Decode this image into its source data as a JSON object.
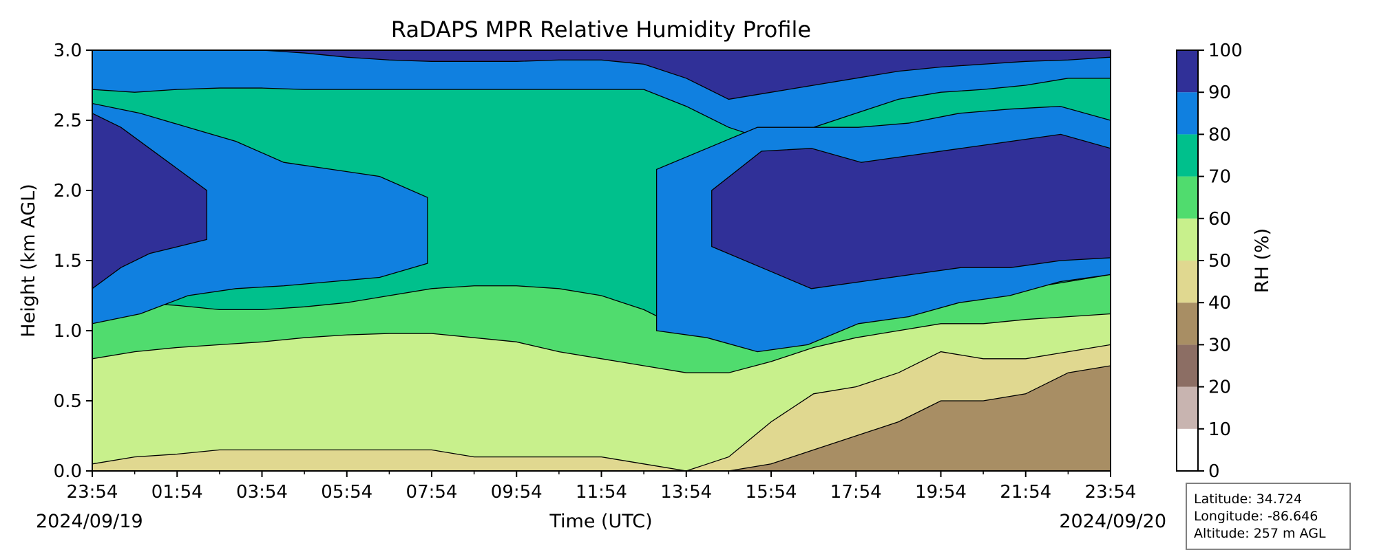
{
  "chart_data": {
    "type": "heatmap",
    "subtype": "filled contour time-height cross-section",
    "title": "RaDAPS MPR Relative Humidity Profile",
    "xlabel": "Time (UTC)",
    "ylabel": "Height (km AGL)",
    "x_ticks": [
      "23:54",
      "01:54",
      "03:54",
      "05:54",
      "07:54",
      "09:54",
      "11:54",
      "13:54",
      "15:54",
      "17:54",
      "19:54",
      "21:54",
      "23:54"
    ],
    "x_date_labels": [
      "2024/09/19",
      "2024/09/20"
    ],
    "y_ticks": [
      "0.0",
      "0.5",
      "1.0",
      "1.5",
      "2.0",
      "2.5",
      "3.0"
    ],
    "ylim": [
      0,
      3.0
    ],
    "xlim_hours": [
      0,
      24
    ],
    "colorbar": {
      "label": "RH (%)",
      "ticks": [
        "0",
        "10",
        "20",
        "30",
        "40",
        "50",
        "60",
        "70",
        "80",
        "90",
        "100"
      ],
      "levels": [
        0,
        10,
        20,
        30,
        40,
        50,
        60,
        70,
        80,
        90,
        100
      ],
      "colors": [
        "#ffffff",
        "#c8b4b0",
        "#8c6e64",
        "#a88e64",
        "#e0d890",
        "#c8f08c",
        "#50dc6e",
        "#00c08c",
        "#1080e0",
        "#303098"
      ]
    },
    "boundaries_km": {
      "time_hours": [
        0,
        1,
        2,
        3,
        4,
        5,
        6,
        7,
        8,
        9,
        10,
        11,
        12,
        13,
        14,
        15,
        16,
        17,
        18,
        19,
        20,
        21,
        22,
        23,
        24
      ],
      "rh40": [
        0,
        0,
        0,
        0,
        0,
        0,
        0,
        0,
        0,
        0,
        0,
        0,
        0,
        0,
        0,
        0,
        0.05,
        0.15,
        0.25,
        0.35,
        0.5,
        0.5,
        0.55,
        0.7,
        0.75
      ],
      "rh50": [
        0.05,
        0.1,
        0.12,
        0.15,
        0.15,
        0.15,
        0.15,
        0.15,
        0.15,
        0.1,
        0.1,
        0.1,
        0.1,
        0.05,
        0,
        0.1,
        0.35,
        0.55,
        0.6,
        0.7,
        0.85,
        0.8,
        0.8,
        0.85,
        0.9
      ],
      "rh60": [
        0.8,
        0.85,
        0.88,
        0.9,
        0.92,
        0.95,
        0.97,
        0.98,
        0.98,
        0.95,
        0.92,
        0.85,
        0.8,
        0.75,
        0.7,
        0.7,
        0.78,
        0.88,
        0.95,
        1.0,
        1.05,
        1.05,
        1.08,
        1.1,
        1.12
      ],
      "rh70": [
        1.2,
        1.2,
        1.18,
        1.15,
        1.15,
        1.17,
        1.2,
        1.25,
        1.3,
        1.32,
        1.32,
        1.3,
        1.25,
        1.15,
        1.0,
        0.95,
        0.95,
        1.05,
        1.12,
        1.2,
        1.25,
        1.25,
        1.3,
        1.35,
        1.4
      ],
      "rh80": [
        2.72,
        2.7,
        2.72,
        2.73,
        2.73,
        2.72,
        2.72,
        2.72,
        2.72,
        2.72,
        2.72,
        2.72,
        2.72,
        2.72,
        2.6,
        2.45,
        2.35,
        2.45,
        2.55,
        2.65,
        2.7,
        2.72,
        2.75,
        2.8,
        2.8
      ],
      "rh90": [
        3.0,
        3.0,
        3.0,
        3.0,
        3.0,
        2.98,
        2.95,
        2.93,
        2.92,
        2.92,
        2.92,
        2.93,
        2.93,
        2.9,
        2.8,
        2.65,
        2.7,
        2.75,
        2.8,
        2.85,
        2.88,
        2.9,
        2.92,
        2.93,
        2.95
      ]
    },
    "moist_core_80": [
      {
        "t": [
          0,
          7.9
        ],
        "bottom": [
          1.05,
          1.12,
          1.25,
          1.3,
          1.32,
          1.35,
          1.38,
          1.48
        ],
        "top": [
          2.62,
          2.55,
          2.45,
          2.35,
          2.2,
          2.15,
          2.1,
          1.95
        ]
      },
      {
        "t": [
          13.3,
          24
        ],
        "bottom": [
          1.0,
          0.95,
          0.85,
          0.9,
          1.05,
          1.1,
          1.2,
          1.25,
          1.35,
          1.4
        ],
        "top": [
          2.15,
          2.3,
          2.45,
          2.45,
          2.45,
          2.48,
          2.55,
          2.58,
          2.6,
          2.5
        ]
      }
    ],
    "moist_core_90": [
      {
        "t": [
          0,
          2.7
        ],
        "bottom": [
          1.3,
          1.45,
          1.55,
          1.6,
          1.65
        ],
        "top": [
          2.55,
          2.45,
          2.3,
          2.15,
          2.0
        ]
      },
      {
        "t": [
          14.6,
          24
        ],
        "bottom": [
          1.6,
          1.45,
          1.3,
          1.35,
          1.4,
          1.45,
          1.45,
          1.5,
          1.52
        ],
        "top": [
          2.0,
          2.28,
          2.3,
          2.2,
          2.25,
          2.3,
          2.35,
          2.4,
          2.3
        ]
      }
    ]
  },
  "info_box": {
    "latitude": "Latitude: 34.724",
    "longitude": "Longitude: -86.646",
    "altitude": "Altitude: 257 m AGL"
  }
}
